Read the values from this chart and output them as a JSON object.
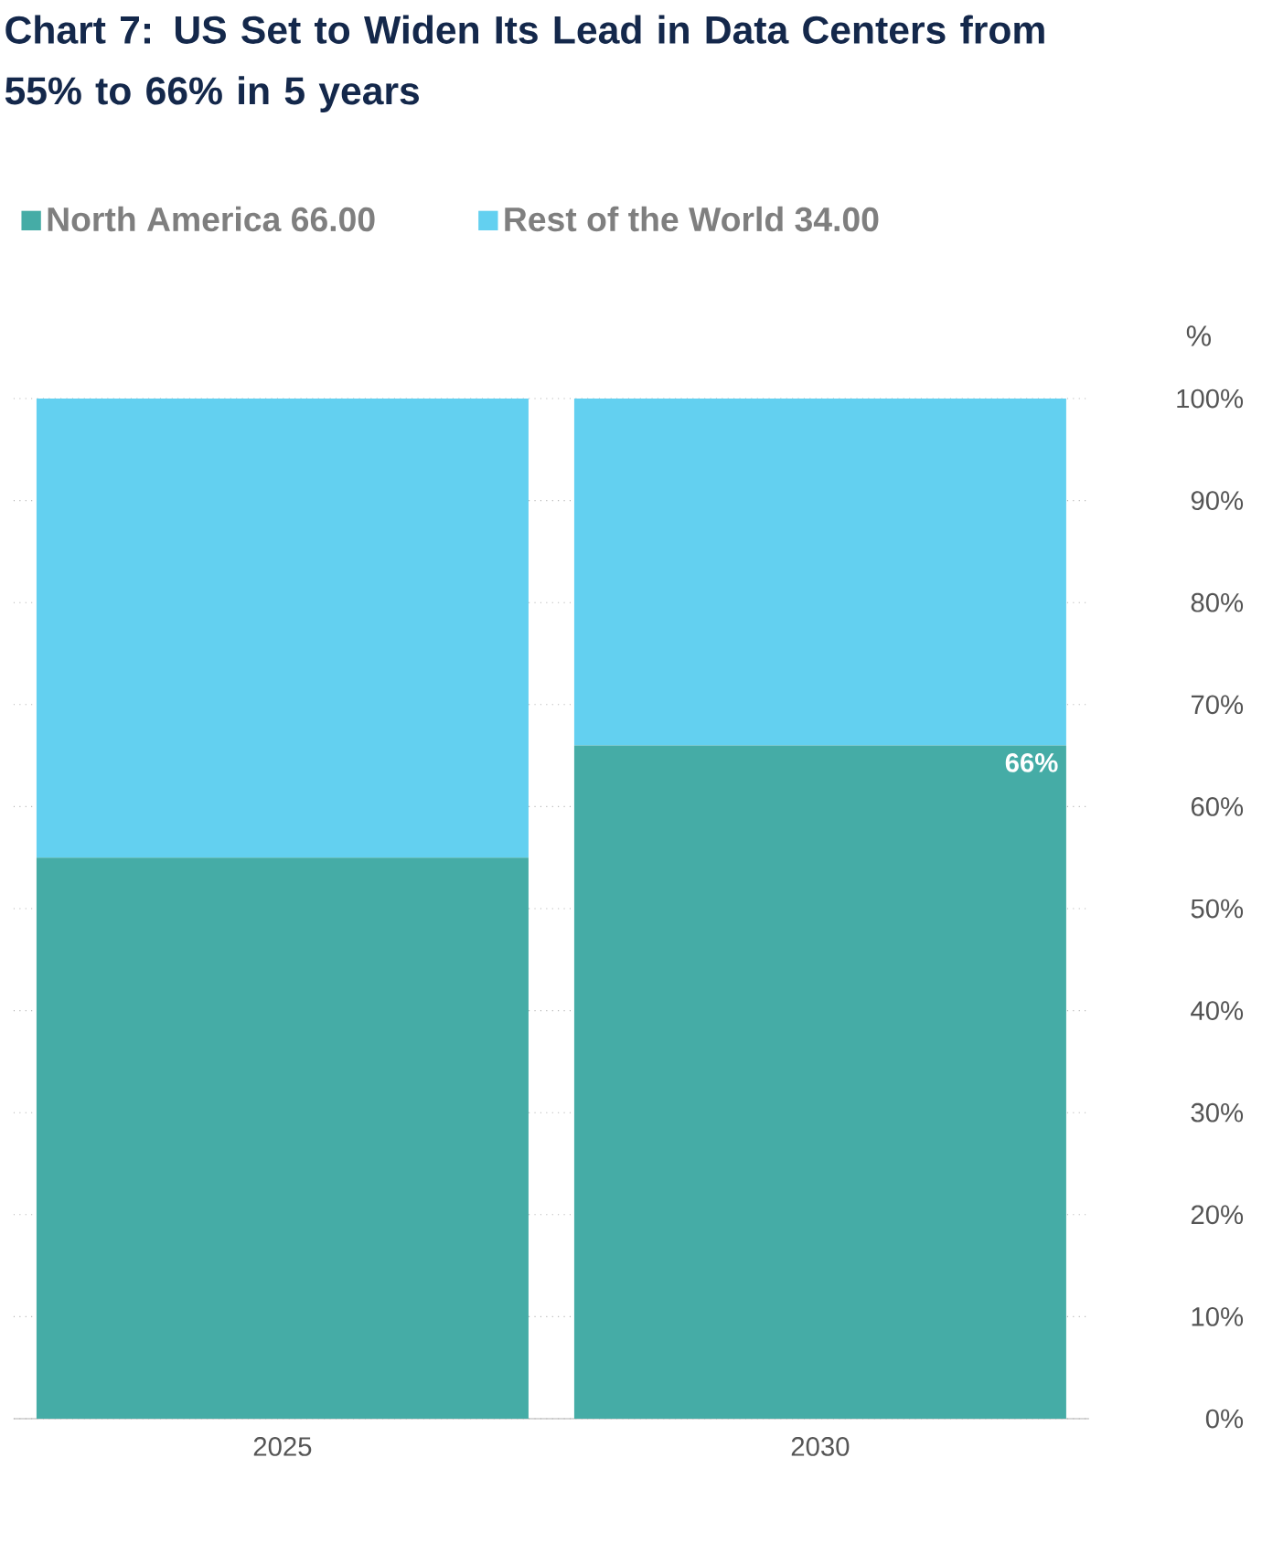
{
  "chart_data": {
    "type": "bar",
    "title": "Chart 7: US Set to Widen Its Lead in Data Centers from 55% to 66% in 5 years",
    "categories": [
      "2025",
      "2030"
    ],
    "series": [
      {
        "name": "North  America  66.00",
        "color": "#45aca6",
        "values": [
          55,
          66
        ],
        "value_labels": [
          null,
          "66%"
        ]
      },
      {
        "name": "Rest of the World 34.00",
        "color": "#63d0f0",
        "values": [
          45,
          34
        ]
      }
    ],
    "stacked": true,
    "ylabel": "%",
    "ylim": [
      0,
      100
    ],
    "yticks": [
      {
        "value": 0,
        "label": "0%"
      },
      {
        "value": 10,
        "label": "10%"
      },
      {
        "value": 20,
        "label": "20%"
      },
      {
        "value": 30,
        "label": "30%"
      },
      {
        "value": 40,
        "label": "40%"
      },
      {
        "value": 50,
        "label": "50%"
      },
      {
        "value": 60,
        "label": "60%"
      },
      {
        "value": 70,
        "label": "70%"
      },
      {
        "value": 80,
        "label": "80%"
      },
      {
        "value": 90,
        "label": "90%"
      },
      {
        "value": 100,
        "label": "100%"
      }
    ],
    "grid": "y",
    "legend": "top"
  }
}
